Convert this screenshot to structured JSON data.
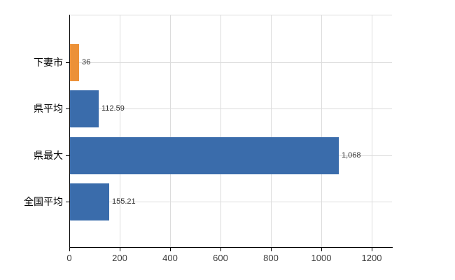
{
  "chart_data": {
    "type": "bar",
    "orientation": "horizontal",
    "title": "",
    "xlabel": "",
    "ylabel": "",
    "categories": [
      "下妻市",
      "県平均",
      "県最大",
      "全国平均"
    ],
    "values": [
      36,
      112.59,
      1068,
      155.21
    ],
    "value_labels": [
      "36",
      "112.59",
      "1,068",
      "155.21"
    ],
    "bar_colors": [
      "#ec9138",
      "#3a6cab",
      "#3a6cab",
      "#3a6cab"
    ],
    "x_ticks": [
      0,
      200,
      400,
      600,
      800,
      1000,
      1200
    ],
    "x_tick_labels": [
      "0",
      "200",
      "400",
      "600",
      "800",
      "1000",
      "1200"
    ],
    "xlim": [
      0,
      1280
    ],
    "grid": true,
    "legend": false
  },
  "colors": {
    "background": "#ffffff",
    "grid": "#dcdcdc",
    "axis": "#000000",
    "tick_text": "#3c3c3c",
    "value_text": "#333333",
    "category_text": "#000000",
    "highlight_orange": "#ec9138",
    "series_blue": "#3a6cab"
  }
}
